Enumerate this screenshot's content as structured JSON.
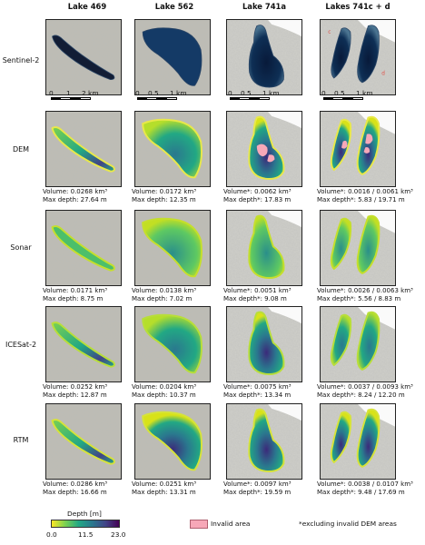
{
  "columns": [
    "Lake 469",
    "Lake 562",
    "Lake 741a",
    "Lakes 741c + d"
  ],
  "rows": [
    "Sentinel-2",
    "DEM",
    "Sonar",
    "ICESat-2",
    "RTM"
  ],
  "scalebars": [
    {
      "labels": [
        "0",
        "1",
        "2 km"
      ]
    },
    {
      "labels": [
        "0",
        "0.5",
        "1 km"
      ]
    },
    {
      "labels": [
        "0",
        "0.5",
        "1 km"
      ]
    },
    {
      "labels": [
        "0",
        "0.5",
        "1 km"
      ]
    }
  ],
  "lake_labels": {
    "c": "c",
    "d": "d"
  },
  "captions": {
    "DEM": [
      [
        "Volume: 0.0268 km³",
        "Max depth: 27.64 m"
      ],
      [
        "Volume: 0.0172 km³",
        "Max depth: 12.35 m"
      ],
      [
        "Volume*: 0.0062 km³",
        "Max depth*: 17.83 m"
      ],
      [
        "Volume*: 0.0016 / 0.0061 km³",
        "Max depth*: 5.83 / 19.71 m"
      ]
    ],
    "Sonar": [
      [
        "Volume: 0.0171 km³",
        "Max depth: 8.75 m"
      ],
      [
        "Volume: 0.0138 km³",
        "Max depth: 7.02 m"
      ],
      [
        "Volume*: 0.0051 km³",
        "Max depth*: 9.08 m"
      ],
      [
        "Volume*: 0.0026 / 0.0063 km³",
        "Max depth*: 5.56 / 8.83 m"
      ]
    ],
    "ICESat-2": [
      [
        "Volume: 0.0252 km³",
        "Max depth: 12.87 m"
      ],
      [
        "Volume: 0.0204 km³",
        "Max depth: 10.37 m"
      ],
      [
        "Volume*: 0.0075 km³",
        "Max depth*: 13.34 m"
      ],
      [
        "Volume*: 0.0037 / 0.0093 km³",
        "Max depth*: 8.24 / 12.20 m"
      ]
    ],
    "RTM": [
      [
        "Volume: 0.0286 km³",
        "Max depth: 16.66 m"
      ],
      [
        "Volume: 0.0251 km³",
        "Max depth: 13.31 m"
      ],
      [
        "Volume*: 0.0097 km³",
        "Max depth*: 19.59 m"
      ],
      [
        "Volume*: 0.0038 / 0.0107 km³",
        "Max depth*: 9.48 / 17.69 m"
      ]
    ]
  },
  "legend": {
    "title": "Depth [m]",
    "ticks": [
      "0.0",
      "11.5",
      "23.0"
    ],
    "colors": [
      "#fde725",
      "#7ad151",
      "#22a884",
      "#2a788e",
      "#414487",
      "#440154"
    ],
    "invalid_label": "Invalid area",
    "invalid_color": "#f7a8b8",
    "note": "*excluding invalid DEM areas"
  }
}
